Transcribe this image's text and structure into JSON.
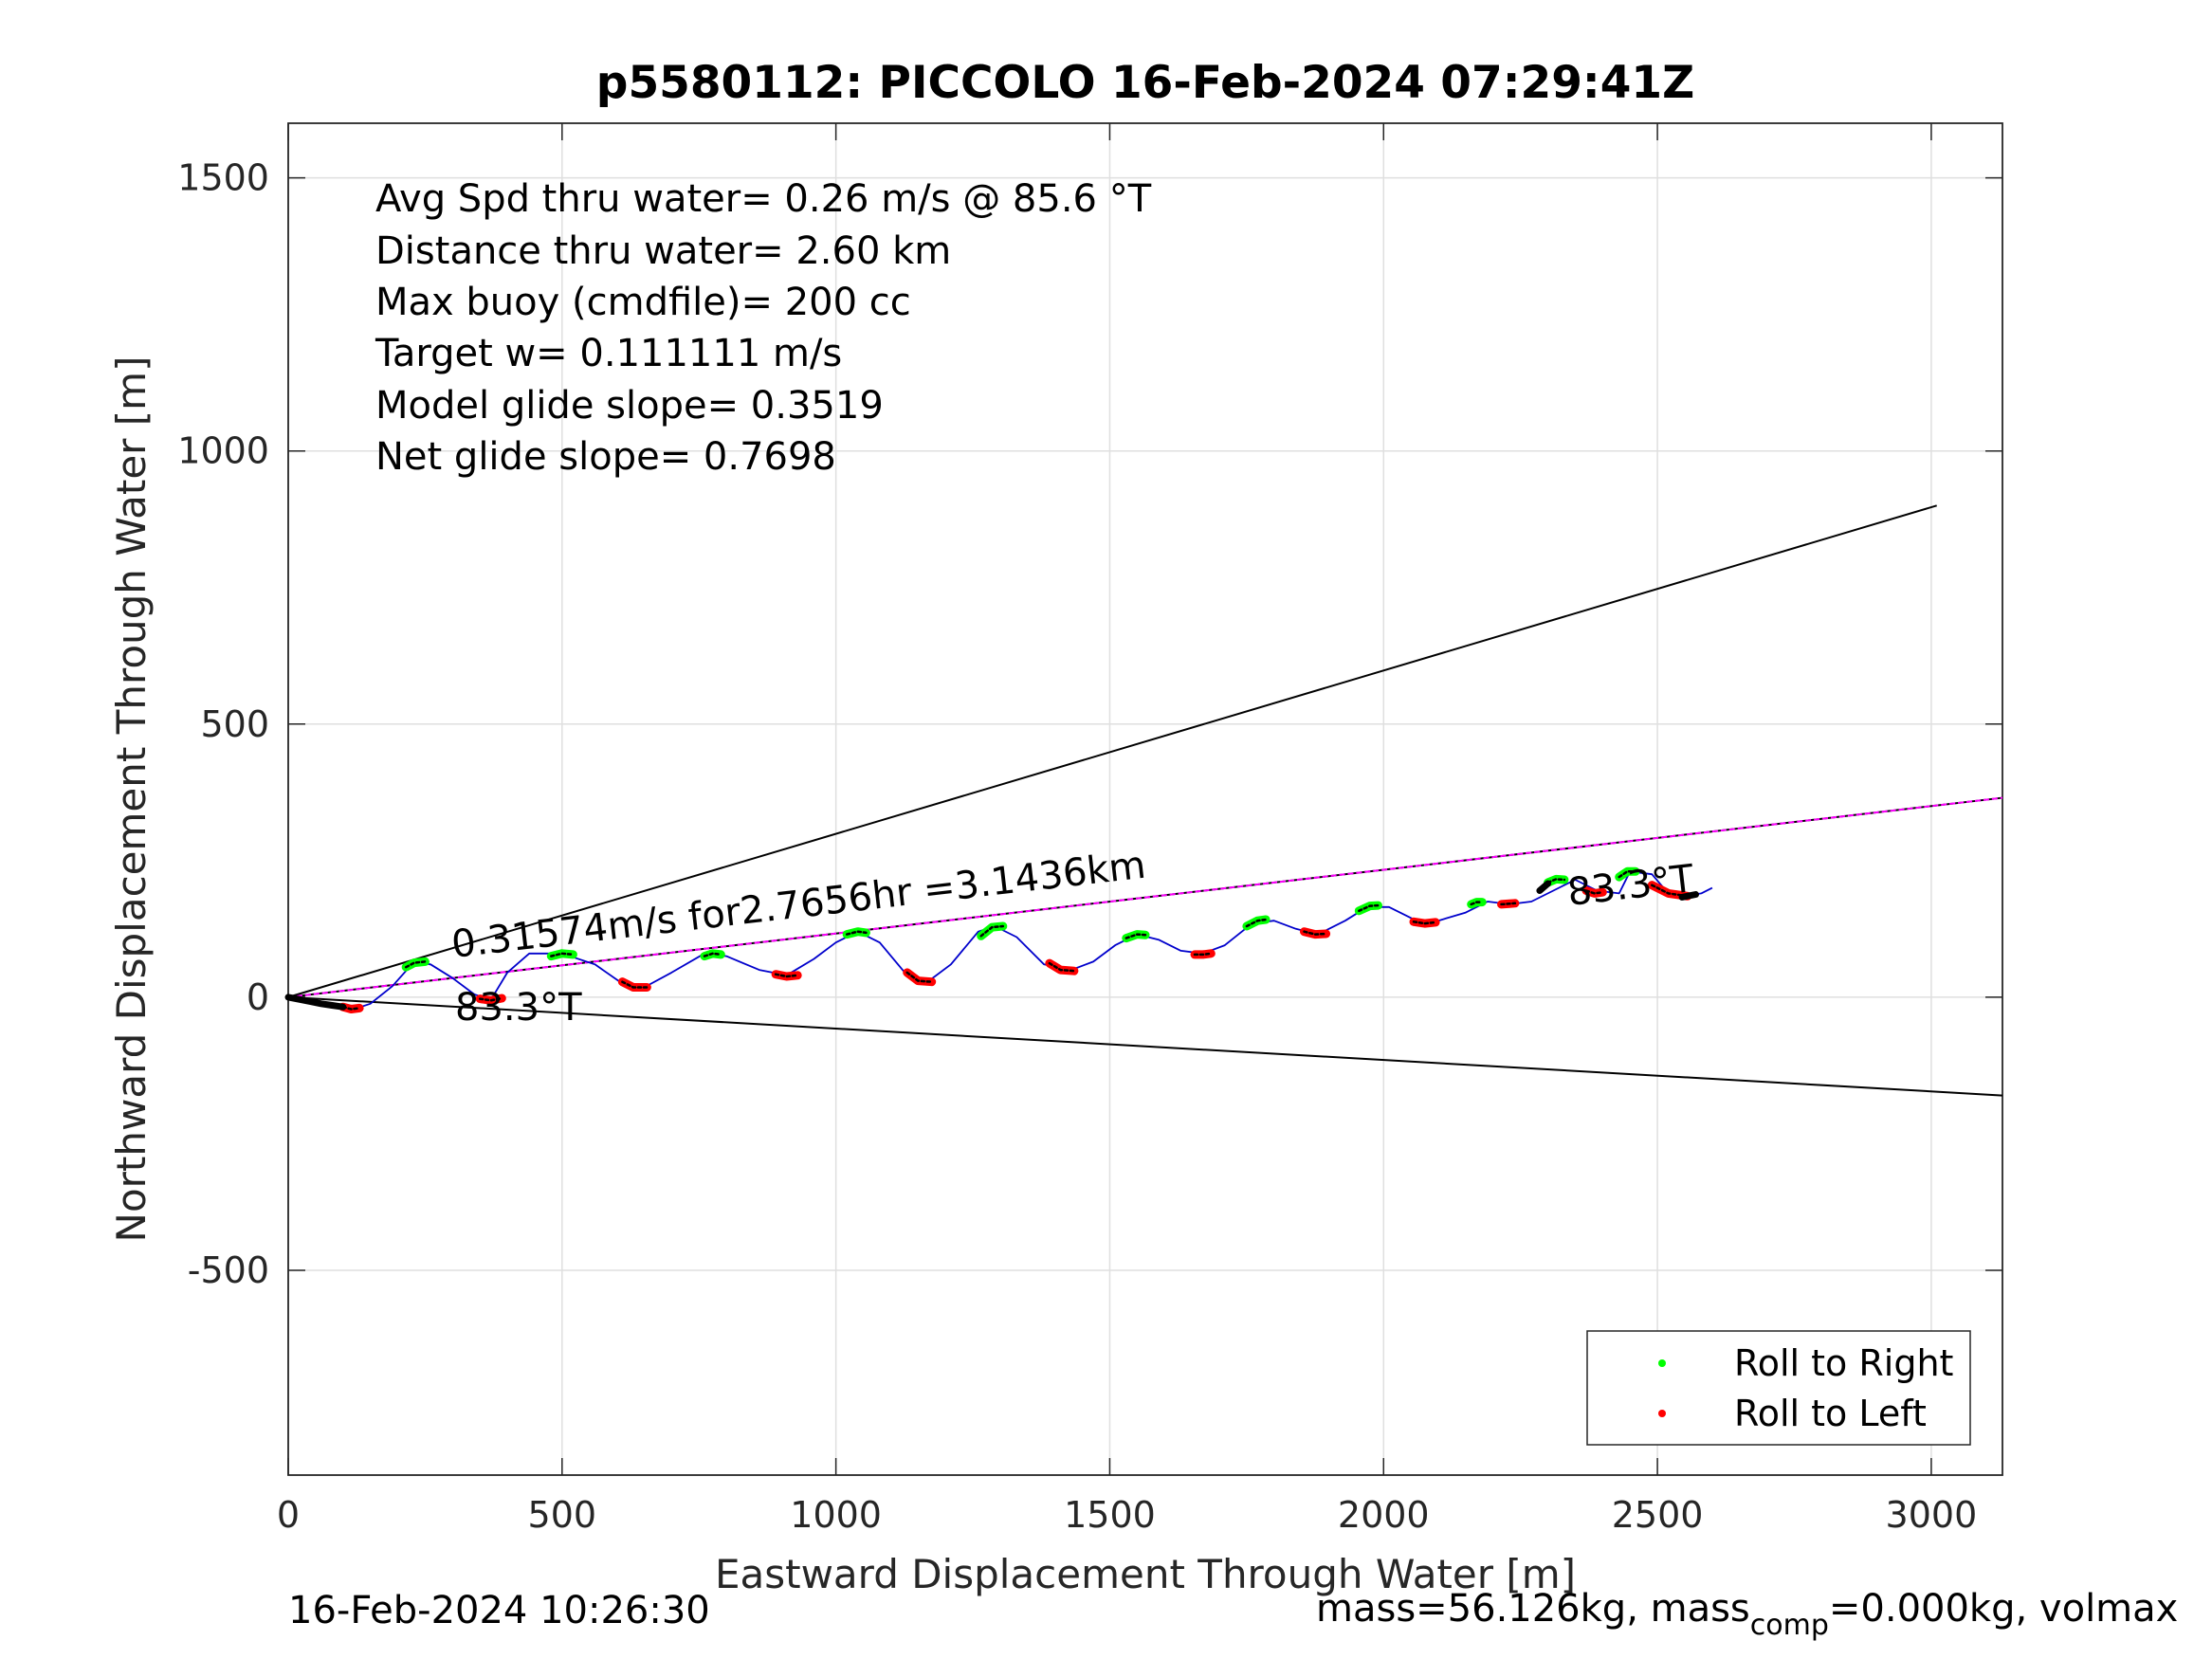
{
  "chart_data": {
    "type": "line",
    "title": "p5580112: PICCOLO 16-Feb-2024 07:29:41Z",
    "xlabel": "Eastward Displacement Through Water [m]",
    "ylabel": "Northward Displacement Through Water [m]",
    "xlim": [
      0,
      3130
    ],
    "ylim": [
      -875,
      1600
    ],
    "xticks": [
      0,
      500,
      1000,
      1500,
      2000,
      2500,
      3000
    ],
    "yticks": [
      -500,
      0,
      500,
      1000,
      1500
    ],
    "xtick_labels": [
      "0",
      "500",
      "1000",
      "1500",
      "2000",
      "2500",
      "3000"
    ],
    "ytick_labels": [
      "-500",
      "0",
      "500",
      "1000",
      "1500"
    ],
    "grid": true,
    "legend_position": "bottom-right",
    "info_lines": [
      "Avg Spd thru water=  0.26 m/s @  85.6 °T",
      "Distance thru water=  2.60 km",
      "Max buoy (cmdfile)= 200 cc",
      "Target w= 0.111111 m/s",
      "Model glide slope= 0.3519",
      "Net glide slope= 0.7698"
    ],
    "annotation_rate": "0.31574m/s for2.7656hr =3.1436km",
    "annotation_heading_start": "83.3°T",
    "annotation_heading_end": "83.3°T",
    "footer_left": "16-Feb-2024 10:26:30",
    "footer_right_a": "mass=56.126kg, mass",
    "footer_right_sub": "comp",
    "footer_right_b": "=0.000kg, volmax",
    "legend": [
      {
        "name": "Roll to Right",
        "color": "#00ff00"
      },
      {
        "name": "Roll to Left",
        "color": "#ff0000"
      }
    ],
    "reference_lines": [
      {
        "x": [
          0,
          3010
        ],
        "y": [
          0,
          900
        ],
        "color": "#000000"
      },
      {
        "x": [
          0,
          3130
        ],
        "y": [
          0,
          -180
        ],
        "color": "#000000"
      },
      {
        "x": [
          0,
          3130
        ],
        "y": [
          0,
          365
        ],
        "color": "#000000"
      },
      {
        "x": [
          0,
          3130
        ],
        "y": [
          0,
          365
        ],
        "color": "#ff00ff",
        "dashed": true
      }
    ],
    "track": {
      "color": "#0000cc",
      "x": [
        0,
        30,
        60,
        90,
        120,
        150,
        190,
        230,
        260,
        300,
        340,
        370,
        400,
        440,
        500,
        560,
        610,
        650,
        700,
        760,
        800,
        860,
        910,
        960,
        1000,
        1040,
        1080,
        1130,
        1170,
        1210,
        1260,
        1290,
        1330,
        1380,
        1430,
        1470,
        1510,
        1550,
        1590,
        1630,
        1670,
        1710,
        1760,
        1800,
        1840,
        1880,
        1930,
        1970,
        2010,
        2060,
        2100,
        2150,
        2190,
        2230,
        2270,
        2310,
        2350,
        2390,
        2430,
        2450,
        2490,
        2520,
        2550,
        2580,
        2600
      ],
      "y": [
        0,
        -5,
        -12,
        -18,
        -22,
        -12,
        20,
        65,
        60,
        35,
        5,
        -5,
        45,
        80,
        80,
        60,
        25,
        18,
        45,
        80,
        75,
        50,
        40,
        70,
        100,
        120,
        100,
        40,
        30,
        60,
        120,
        130,
        110,
        60,
        50,
        65,
        95,
        115,
        105,
        85,
        80,
        95,
        135,
        140,
        125,
        115,
        140,
        165,
        165,
        140,
        140,
        155,
        175,
        170,
        175,
        195,
        215,
        195,
        190,
        230,
        225,
        190,
        185,
        190,
        200
      ]
    },
    "roll_right_segments": [
      [
        [
          215,
          55
        ],
        [
          230,
          63
        ],
        [
          250,
          65
        ]
      ],
      [
        [
          480,
          75
        ],
        [
          500,
          80
        ],
        [
          520,
          78
        ]
      ],
      [
        [
          760,
          75
        ],
        [
          775,
          80
        ],
        [
          790,
          78
        ]
      ],
      [
        [
          1020,
          115
        ],
        [
          1040,
          120
        ],
        [
          1055,
          118
        ]
      ],
      [
        [
          1265,
          112
        ],
        [
          1285,
          128
        ],
        [
          1305,
          130
        ]
      ],
      [
        [
          1530,
          108
        ],
        [
          1550,
          115
        ],
        [
          1565,
          114
        ]
      ],
      [
        [
          1750,
          130
        ],
        [
          1770,
          140
        ],
        [
          1785,
          142
        ]
      ],
      [
        [
          1955,
          158
        ],
        [
          1975,
          167
        ],
        [
          1990,
          168
        ]
      ],
      [
        [
          2160,
          170
        ],
        [
          2170,
          174
        ],
        [
          2180,
          174
        ]
      ],
      [
        [
          2300,
          210
        ],
        [
          2315,
          216
        ],
        [
          2330,
          215
        ]
      ],
      [
        [
          2430,
          220
        ],
        [
          2445,
          230
        ],
        [
          2460,
          230
        ]
      ]
    ],
    "roll_left_segments": [
      [
        [
          100,
          -18
        ],
        [
          115,
          -22
        ],
        [
          130,
          -20
        ]
      ],
      [
        [
          350,
          -3
        ],
        [
          370,
          -6
        ],
        [
          390,
          -2
        ]
      ],
      [
        [
          610,
          28
        ],
        [
          630,
          18
        ],
        [
          655,
          18
        ]
      ],
      [
        [
          890,
          42
        ],
        [
          910,
          38
        ],
        [
          930,
          40
        ]
      ],
      [
        [
          1130,
          45
        ],
        [
          1150,
          30
        ],
        [
          1175,
          28
        ]
      ],
      [
        [
          1390,
          62
        ],
        [
          1410,
          50
        ],
        [
          1435,
          48
        ]
      ],
      [
        [
          1655,
          78
        ],
        [
          1670,
          78
        ],
        [
          1685,
          80
        ]
      ],
      [
        [
          1855,
          120
        ],
        [
          1875,
          115
        ],
        [
          1895,
          116
        ]
      ],
      [
        [
          2055,
          138
        ],
        [
          2075,
          135
        ],
        [
          2095,
          137
        ]
      ],
      [
        [
          2215,
          170
        ],
        [
          2230,
          171
        ],
        [
          2240,
          172
        ]
      ],
      [
        [
          2370,
          195
        ],
        [
          2385,
          190
        ],
        [
          2400,
          192
        ]
      ],
      [
        [
          2490,
          205
        ],
        [
          2520,
          190
        ],
        [
          2555,
          185
        ]
      ]
    ],
    "surface_segments": [
      [
        [
          0,
          0
        ],
        [
          20,
          -4
        ],
        [
          40,
          -8
        ],
        [
          60,
          -12
        ],
        [
          80,
          -15
        ],
        [
          100,
          -18
        ]
      ],
      [
        [
          2285,
          195
        ],
        [
          2300,
          208
        ]
      ],
      [
        [
          2545,
          183
        ],
        [
          2570,
          188
        ]
      ]
    ]
  }
}
